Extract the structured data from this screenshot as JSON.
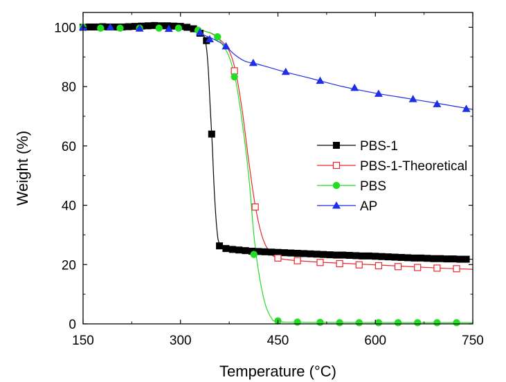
{
  "chart_data": {
    "type": "line",
    "xlabel": "Temperature (°C)",
    "ylabel": "Weight (%)",
    "xlim": [
      150,
      750
    ],
    "ylim": [
      0,
      105
    ],
    "xticks": [
      150,
      300,
      450,
      600,
      750
    ],
    "yticks": [
      0,
      20,
      40,
      60,
      80,
      100
    ],
    "legend_position": "center-right",
    "series": [
      {
        "name": "PBS-1",
        "color": "#000000",
        "marker": "square-filled",
        "line": [
          [
            150,
            100
          ],
          [
            250,
            100.5
          ],
          [
            300,
            100.2
          ],
          [
            320,
            99.5
          ],
          [
            335,
            97.5
          ],
          [
            340,
            93
          ],
          [
            343,
            85
          ],
          [
            346,
            72
          ],
          [
            349,
            60
          ],
          [
            352,
            45
          ],
          [
            356,
            32
          ],
          [
            360,
            27
          ],
          [
            370,
            25.5
          ],
          [
            400,
            24.8
          ],
          [
            450,
            24
          ],
          [
            500,
            23.5
          ],
          [
            600,
            22.8
          ],
          [
            700,
            22
          ],
          [
            750,
            21.8
          ]
        ],
        "markers": [
          [
            150,
            100
          ],
          [
            160,
            100.1
          ],
          [
            170,
            100.1
          ],
          [
            180,
            100.2
          ],
          [
            190,
            100.1
          ],
          [
            200,
            100.1
          ],
          [
            210,
            100.1
          ],
          [
            220,
            100.2
          ],
          [
            230,
            100.3
          ],
          [
            240,
            100.4
          ],
          [
            250,
            100.5
          ],
          [
            260,
            100.6
          ],
          [
            270,
            100.5
          ],
          [
            280,
            100.5
          ],
          [
            290,
            100.4
          ],
          [
            300,
            100.3
          ],
          [
            310,
            100
          ],
          [
            320,
            99.5
          ],
          [
            330,
            98
          ],
          [
            340,
            95.5
          ],
          [
            348,
            64
          ],
          [
            360,
            26.3
          ],
          [
            370,
            25.4
          ],
          [
            380,
            25.1
          ],
          [
            390,
            24.9
          ],
          [
            400,
            24.7
          ],
          [
            410,
            24.5
          ],
          [
            420,
            24.4
          ],
          [
            430,
            24.3
          ],
          [
            440,
            24.2
          ],
          [
            450,
            24.1
          ],
          [
            460,
            24
          ],
          [
            470,
            23.9
          ],
          [
            480,
            23.8
          ],
          [
            490,
            23.7
          ],
          [
            500,
            23.6
          ],
          [
            510,
            23.5
          ],
          [
            520,
            23.4
          ],
          [
            530,
            23.3
          ],
          [
            540,
            23.2
          ],
          [
            550,
            23.2
          ],
          [
            560,
            23.1
          ],
          [
            570,
            23
          ],
          [
            580,
            22.9
          ],
          [
            590,
            22.9
          ],
          [
            600,
            22.8
          ],
          [
            610,
            22.7
          ],
          [
            620,
            22.6
          ],
          [
            630,
            22.5
          ],
          [
            640,
            22.4
          ],
          [
            650,
            22.3
          ],
          [
            660,
            22.2
          ],
          [
            670,
            22.2
          ],
          [
            680,
            22.1
          ],
          [
            690,
            22
          ],
          [
            700,
            22
          ],
          [
            710,
            21.9
          ],
          [
            720,
            21.9
          ],
          [
            730,
            21.8
          ],
          [
            740,
            21.8
          ]
        ]
      },
      {
        "name": "PBS-1-Theoretical",
        "color": "#e8262b",
        "marker": "square-open",
        "line": [
          [
            150,
            100
          ],
          [
            300,
            99.8
          ],
          [
            340,
            98.5
          ],
          [
            360,
            96
          ],
          [
            375,
            92
          ],
          [
            385,
            85
          ],
          [
            395,
            72
          ],
          [
            405,
            55
          ],
          [
            415,
            40
          ],
          [
            425,
            30
          ],
          [
            435,
            25
          ],
          [
            450,
            22.2
          ],
          [
            500,
            21
          ],
          [
            600,
            19.9
          ],
          [
            700,
            18.8
          ],
          [
            750,
            18.4
          ]
        ],
        "markers": [
          [
            383,
            85.3
          ],
          [
            415,
            39.4
          ],
          [
            450,
            22.2
          ],
          [
            480,
            21.3
          ],
          [
            515,
            20.7
          ],
          [
            545,
            20.3
          ],
          [
            575,
            19.9
          ],
          [
            605,
            19.6
          ],
          [
            635,
            19.3
          ],
          [
            665,
            19
          ],
          [
            695,
            18.8
          ],
          [
            725,
            18.6
          ]
        ]
      },
      {
        "name": "PBS",
        "color": "#22dd22",
        "marker": "circle-filled",
        "line": [
          [
            150,
            100
          ],
          [
            300,
            99.8
          ],
          [
            340,
            98.5
          ],
          [
            355,
            97
          ],
          [
            365,
            94
          ],
          [
            375,
            90
          ],
          [
            385,
            82
          ],
          [
            395,
            68
          ],
          [
            405,
            50
          ],
          [
            413,
            30
          ],
          [
            420,
            18
          ],
          [
            430,
            7
          ],
          [
            440,
            2
          ],
          [
            450,
            0.8
          ],
          [
            500,
            0.5
          ],
          [
            750,
            0.4
          ]
        ],
        "markers": [
          [
            150,
            100
          ],
          [
            177,
            99.7
          ],
          [
            207,
            99.7
          ],
          [
            237,
            99.7
          ],
          [
            267,
            99.7
          ],
          [
            297,
            99.7
          ],
          [
            327,
            99
          ],
          [
            357,
            96.8
          ],
          [
            383,
            83.3
          ],
          [
            413,
            23.4
          ],
          [
            450,
            1
          ],
          [
            480,
            0.6
          ],
          [
            515,
            0.5
          ],
          [
            545,
            0.4
          ],
          [
            575,
            0.4
          ],
          [
            605,
            0.4
          ],
          [
            635,
            0.4
          ],
          [
            665,
            0.4
          ],
          [
            695,
            0.4
          ],
          [
            725,
            0.4
          ]
        ]
      },
      {
        "name": "AP",
        "color": "#1f2fe6",
        "marker": "triangle-filled",
        "line": [
          [
            150,
            100
          ],
          [
            300,
            99.5
          ],
          [
            340,
            97
          ],
          [
            360,
            95
          ],
          [
            370,
            93.5
          ],
          [
            385,
            90.5
          ],
          [
            400,
            88.5
          ],
          [
            420,
            87.5
          ],
          [
            460,
            85
          ],
          [
            500,
            82.8
          ],
          [
            550,
            80
          ],
          [
            600,
            77.8
          ],
          [
            650,
            76
          ],
          [
            700,
            74.2
          ],
          [
            750,
            72.3
          ]
        ],
        "markers": [
          [
            150,
            100
          ],
          [
            192,
            100
          ],
          [
            237,
            99.6
          ],
          [
            282,
            99.5
          ],
          [
            330,
            98.3
          ],
          [
            345,
            96
          ],
          [
            370,
            93.6
          ],
          [
            412,
            88
          ],
          [
            462,
            85
          ],
          [
            515,
            82
          ],
          [
            568,
            79.6
          ],
          [
            605,
            77.6
          ],
          [
            658,
            75.8
          ],
          [
            695,
            74.1
          ],
          [
            740,
            72.5
          ]
        ]
      }
    ]
  }
}
